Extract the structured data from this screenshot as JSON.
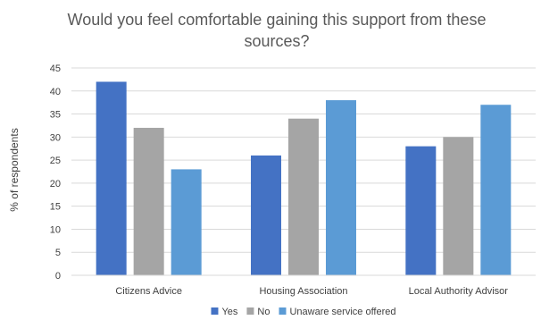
{
  "chart_data": {
    "type": "bar",
    "title_lines": [
      "Would you feel comfortable gaining this support from these",
      "sources?"
    ],
    "ylabel": "% of respondents",
    "xlabel": "",
    "ylim": [
      0,
      45
    ],
    "ytick_step": 5,
    "categories": [
      "Citizens Advice",
      "Housing Association",
      "Local Authority Advisor"
    ],
    "series": [
      {
        "name": "Yes",
        "values": [
          42,
          26,
          28
        ],
        "color": "#4472C4"
      },
      {
        "name": "No",
        "values": [
          32,
          34,
          30
        ],
        "color": "#A5A5A5"
      },
      {
        "name": "Unaware service offered",
        "values": [
          23,
          38,
          37
        ],
        "color": "#5B9BD5"
      }
    ],
    "grid": true,
    "legend": "bottom"
  }
}
